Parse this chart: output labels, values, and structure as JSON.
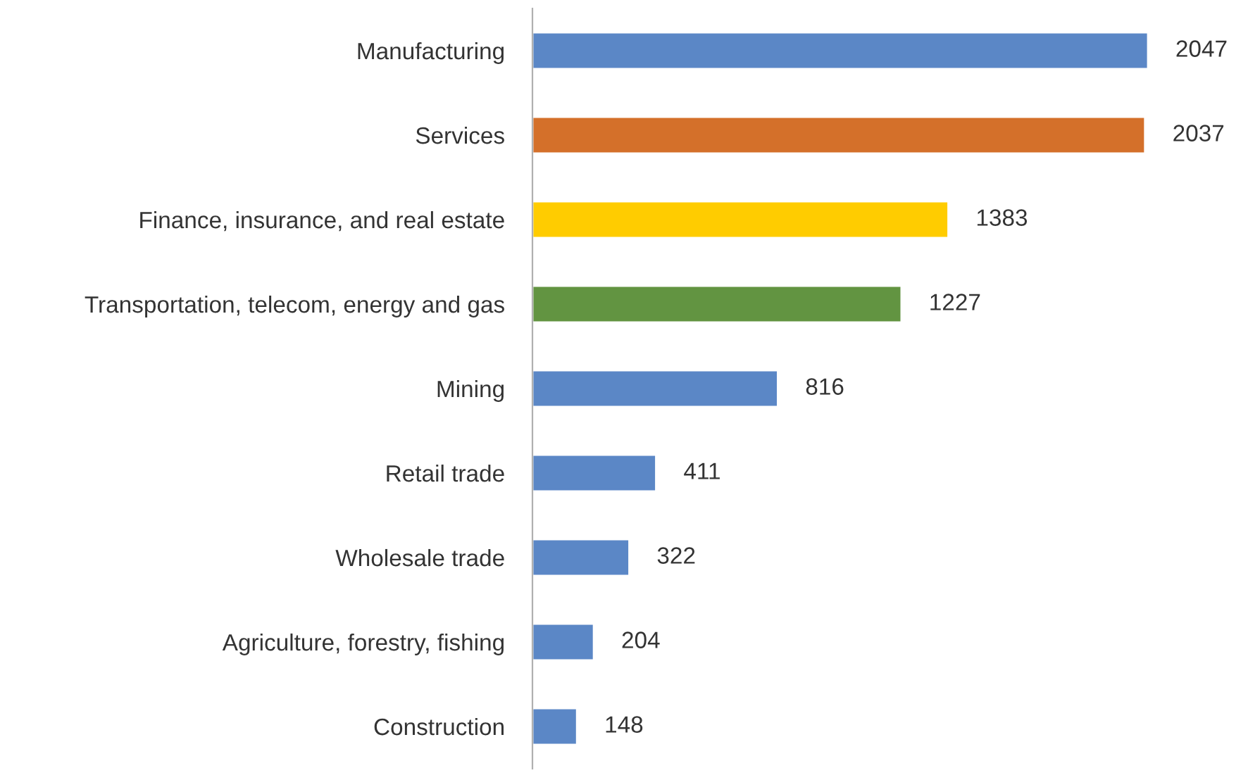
{
  "chart_data": {
    "type": "bar",
    "orientation": "horizontal",
    "categories": [
      "Manufacturing",
      "Services",
      "Finance, insurance, and real estate",
      "Transportation, telecom, energy and gas",
      "Mining",
      "Retail trade",
      "Wholesale trade",
      "Agriculture, forestry, fishing",
      "Construction"
    ],
    "values": [
      2047,
      2037,
      1383,
      1227,
      816,
      411,
      322,
      204,
      148
    ],
    "colors": [
      "#5b87c6",
      "#d4702a",
      "#ffcc00",
      "#629441",
      "#5b87c6",
      "#5b87c6",
      "#5b87c6",
      "#5b87c6",
      "#5b87c6"
    ],
    "data_labels": true,
    "grid": false,
    "legend": false
  }
}
